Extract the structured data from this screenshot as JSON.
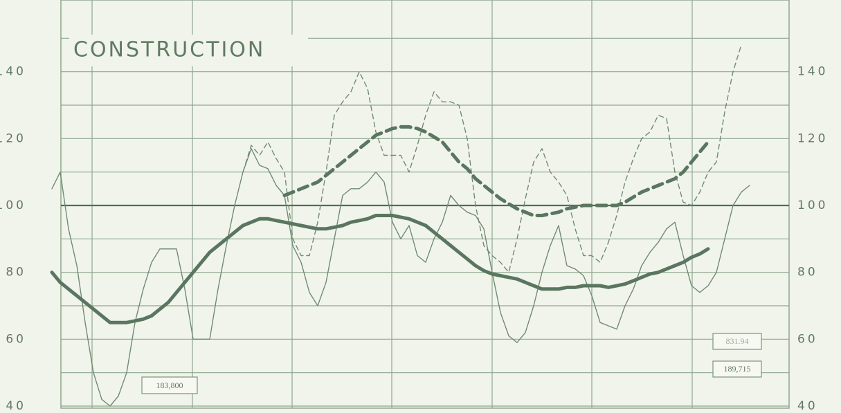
{
  "chart_data": {
    "type": "line",
    "title": "CONSTRUCTION",
    "categories": [
      null,
      null,
      null,
      null,
      null,
      null,
      null,
      null,
      null,
      null,
      null,
      null,
      null,
      null,
      null,
      null,
      null,
      null,
      null,
      null,
      null,
      null,
      null,
      null,
      null,
      null,
      null,
      null,
      null,
      null,
      null,
      null,
      null,
      null,
      null,
      null,
      null,
      null,
      null,
      null,
      null,
      null,
      null,
      null,
      null,
      null,
      null,
      null,
      null,
      null,
      null,
      null,
      null,
      null,
      null,
      null,
      null,
      null,
      null,
      null,
      null,
      null,
      null,
      null,
      null,
      null,
      null,
      null,
      null,
      null,
      null,
      null,
      null,
      null,
      null,
      null,
      null,
      null,
      null,
      null,
      null,
      null,
      null,
      null,
      null
    ],
    "series": [
      {
        "color": "#6f8b73",
        "line_style": "solid",
        "weight": "light",
        "values": [
          105,
          110,
          93,
          82,
          65,
          50,
          42,
          40,
          43,
          50,
          65,
          75,
          83,
          87,
          87,
          87,
          75,
          60,
          60,
          60,
          75,
          88,
          100,
          110,
          117,
          112,
          111,
          106,
          103,
          88,
          83,
          74,
          70,
          77,
          90,
          103,
          105,
          105,
          107,
          110,
          107,
          95,
          90,
          94,
          85,
          83,
          90,
          95,
          103,
          100,
          98,
          97,
          93,
          80,
          68,
          61,
          59,
          62,
          70,
          80,
          88,
          94,
          82,
          81,
          79,
          73,
          65,
          64,
          63,
          70,
          75,
          82,
          86,
          89,
          93,
          95,
          85,
          76,
          74,
          76,
          80,
          90,
          100,
          104,
          106
        ]
      },
      {
        "color": "#6f8b73",
        "line_style": "dashed",
        "weight": "light",
        "values": [
          null,
          null,
          null,
          null,
          null,
          null,
          null,
          null,
          null,
          null,
          null,
          null,
          null,
          null,
          null,
          null,
          null,
          null,
          null,
          null,
          null,
          null,
          null,
          110,
          118,
          115,
          119,
          114,
          110,
          90,
          85,
          85,
          95,
          110,
          127,
          131,
          134,
          140,
          135,
          122,
          115,
          115,
          115,
          110,
          118,
          127,
          134,
          131,
          131,
          130,
          120,
          100,
          88,
          85,
          83,
          80,
          90,
          102,
          113,
          117,
          110,
          107,
          103,
          93,
          85,
          85,
          83,
          89,
          97,
          107,
          114,
          120,
          122,
          127,
          126,
          110,
          101,
          100,
          104,
          110,
          113,
          128,
          140,
          148,
          null
        ]
      },
      {
        "color": "#5a7660",
        "line_style": "solid",
        "weight": "heavy",
        "values": [
          80,
          77,
          75,
          73,
          71,
          69,
          67,
          65,
          65,
          65,
          65.5,
          66,
          67,
          69,
          71,
          74,
          77,
          80,
          83,
          86,
          88,
          90,
          92,
          94,
          95,
          96,
          96,
          95.5,
          95,
          94.5,
          94,
          93.5,
          93,
          93,
          93.5,
          94,
          95,
          95.5,
          96,
          97,
          97,
          97,
          96.5,
          96,
          95,
          94,
          92,
          90,
          88,
          86,
          84,
          82,
          80.5,
          79.5,
          79,
          78.5,
          78,
          77,
          76,
          75,
          75,
          75,
          75.5,
          75.5,
          76,
          76,
          76,
          75.5,
          76,
          76.5,
          77.5,
          78.5,
          79.5,
          80,
          81,
          82,
          83,
          84.5,
          85.5,
          87,
          null,
          null,
          null,
          null,
          null
        ]
      },
      {
        "color": "#5a7660",
        "line_style": "dashed",
        "weight": "heavy",
        "values": [
          null,
          null,
          null,
          null,
          null,
          null,
          null,
          null,
          null,
          null,
          null,
          null,
          null,
          null,
          null,
          null,
          null,
          null,
          null,
          null,
          null,
          null,
          null,
          null,
          null,
          null,
          null,
          null,
          103,
          104,
          105,
          106,
          107,
          109,
          111,
          113,
          115,
          117,
          119,
          121,
          122,
          123,
          123.5,
          123.5,
          123,
          122,
          120.5,
          119,
          116,
          113,
          111,
          108,
          106,
          104,
          102,
          100.5,
          99,
          98,
          97,
          97,
          97.5,
          98,
          99,
          99.5,
          100,
          100,
          100,
          100,
          100,
          101,
          102.5,
          104,
          105,
          106,
          107,
          108,
          110,
          113,
          116,
          119,
          null,
          null,
          null,
          null,
          null
        ]
      }
    ],
    "ylim": [
      40,
      160
    ],
    "yticks": [
      40,
      60,
      80,
      100,
      120,
      140
    ],
    "y_minor_ticks": [
      50,
      70,
      90,
      110,
      130,
      150
    ],
    "reference_line": 100,
    "grid": true,
    "annotations": [
      "183,800",
      "831.94",
      "189,715"
    ]
  }
}
